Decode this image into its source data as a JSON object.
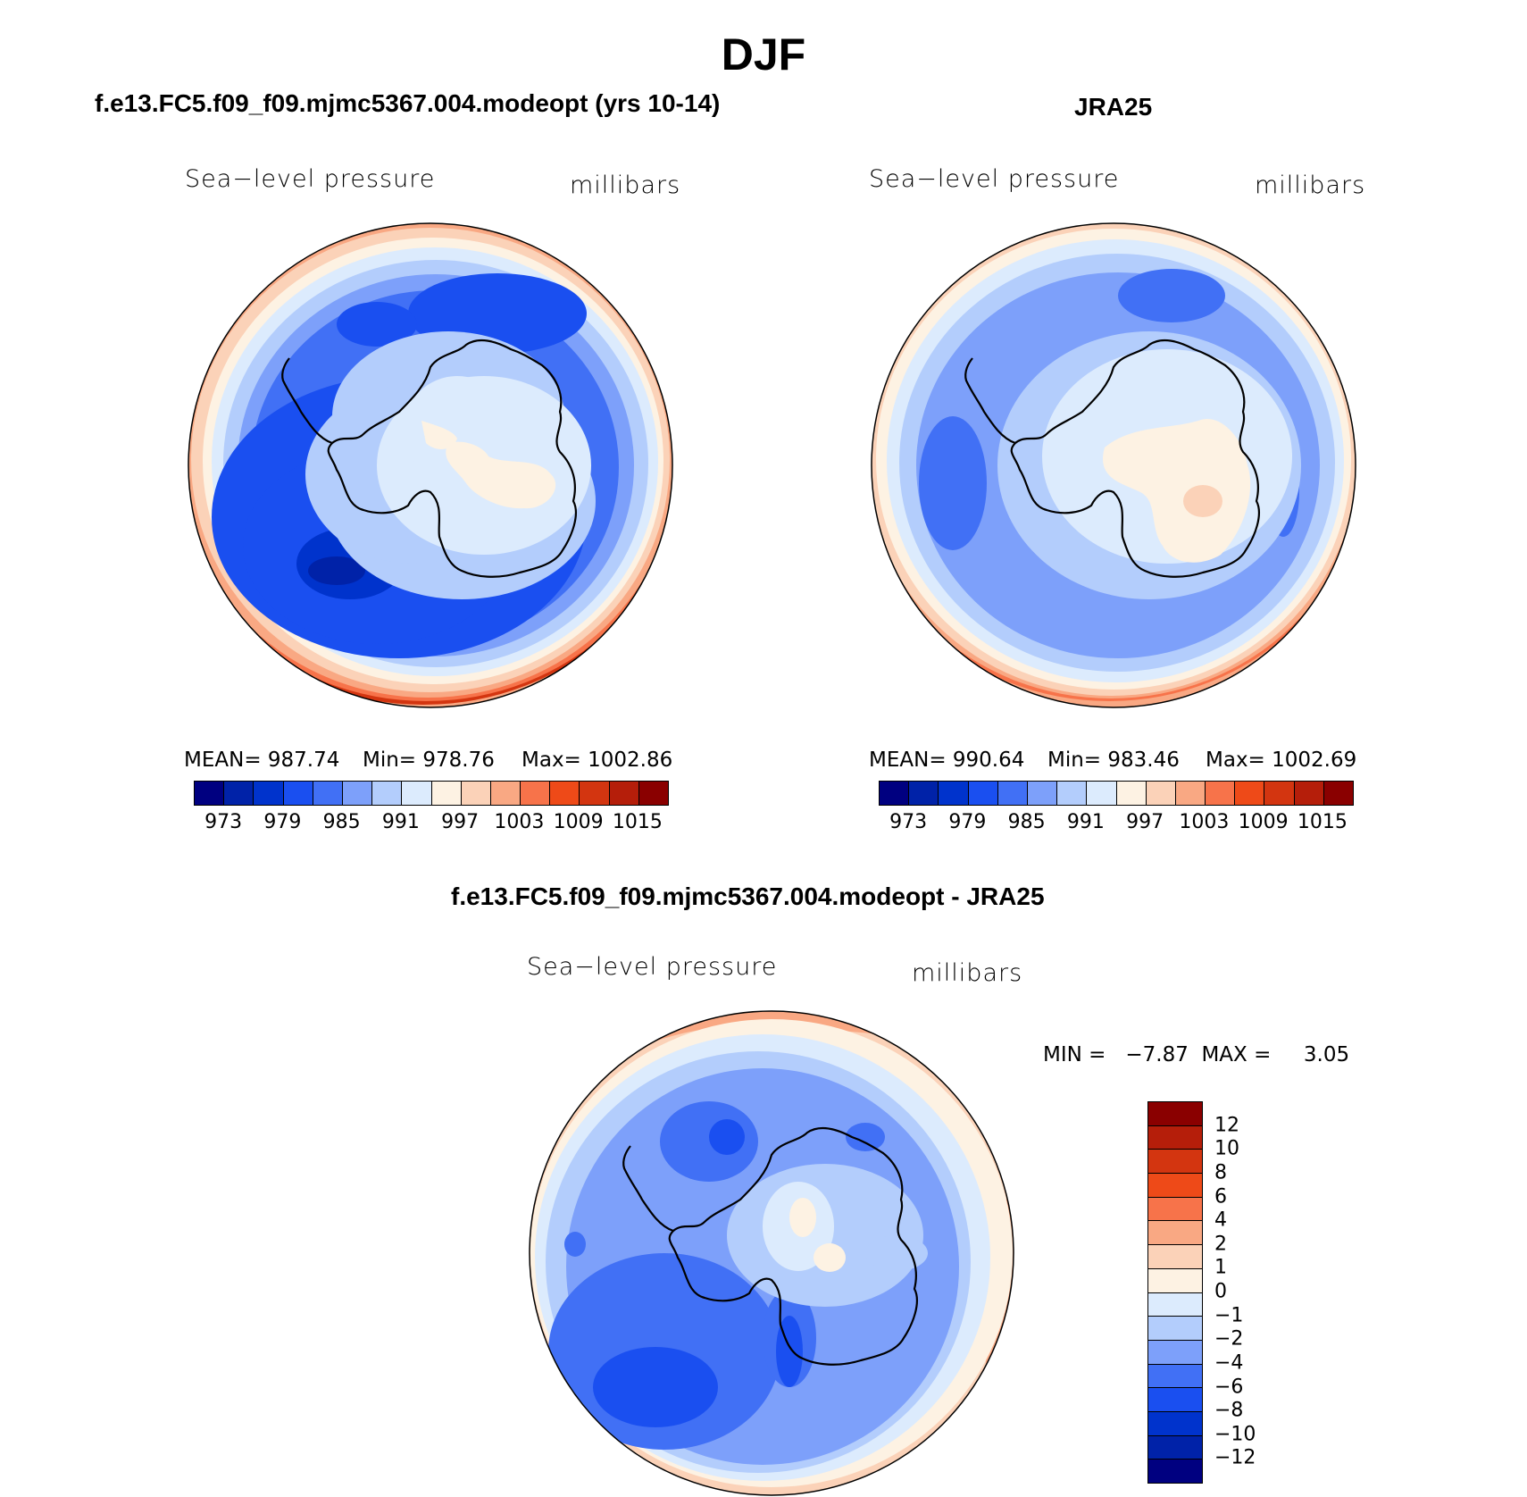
{
  "title": "DJF",
  "colors": {
    "abs": [
      "#000080",
      "#0022a8",
      "#0033cc",
      "#1a4ff0",
      "#4170f5",
      "#7da0fa",
      "#b3cdfc",
      "#dcebfd",
      "#fdf2e3",
      "#fbd2b8",
      "#f9a883",
      "#f7734a",
      "#ee4a18",
      "#d33510",
      "#b51e0a",
      "#8a0000"
    ],
    "diff": [
      "#000080",
      "#0022a8",
      "#0033cc",
      "#1a4ff0",
      "#4170f5",
      "#7da0fa",
      "#b3cdfc",
      "#dcebfd",
      "#fdf2e3",
      "#fbd2b8",
      "#f9a883",
      "#f7734a",
      "#ee4a18",
      "#d33510",
      "#b51e0a",
      "#8a0000"
    ]
  },
  "panels": {
    "model": {
      "title": "f.e13.FC5.f09_f09.mjmc5367.004.modeopt (yrs 10-14)",
      "label_left": "Sea−level pressure",
      "label_right": "millibars",
      "mean": "MEAN= 987.74",
      "min": "Min= 978.76",
      "max": "Max= 1002.86",
      "ticks": [
        "973",
        "979",
        "985",
        "991",
        "997",
        "1003",
        "1009",
        "1015"
      ]
    },
    "obs": {
      "title": "JRA25",
      "label_left": "Sea−level pressure",
      "label_right": "millibars",
      "mean": "MEAN= 990.64",
      "min": "Min= 983.46",
      "max": "Max= 1002.69",
      "ticks": [
        "973",
        "979",
        "985",
        "991",
        "997",
        "1003",
        "1009",
        "1015"
      ]
    },
    "diff": {
      "title": "f.e13.FC5.f09_f09.mjmc5367.004.modeopt - JRA25",
      "label_left": "Sea−level pressure",
      "label_right": "millibars",
      "minmax": "MIN =   −7.87  MAX =     3.05",
      "ticks": [
        "12",
        "10",
        "8",
        "6",
        "4",
        "2",
        "1",
        "0",
        "−1",
        "−2",
        "−4",
        "−6",
        "−8",
        "−10",
        "−12"
      ]
    }
  },
  "chart_data": [
    {
      "type": "contour-map",
      "projection": "south-polar-stereographic",
      "title": "f.e13.FC5.f09_f09.mjmc5367.004.modeopt (yrs 10-14)",
      "variable": "Sea-level pressure",
      "units": "millibars",
      "mean": 987.74,
      "min": 978.76,
      "max": 1002.86,
      "contour_levels": [
        973,
        976,
        979,
        982,
        985,
        988,
        991,
        994,
        997,
        1000,
        1003,
        1006,
        1009,
        1012,
        1015
      ]
    },
    {
      "type": "contour-map",
      "projection": "south-polar-stereographic",
      "title": "JRA25",
      "variable": "Sea-level pressure",
      "units": "millibars",
      "mean": 990.64,
      "min": 983.46,
      "max": 1002.69,
      "contour_levels": [
        973,
        976,
        979,
        982,
        985,
        988,
        991,
        994,
        997,
        1000,
        1003,
        1006,
        1009,
        1012,
        1015
      ]
    },
    {
      "type": "contour-map",
      "projection": "south-polar-stereographic",
      "title": "f.e13.FC5.f09_f09.mjmc5367.004.modeopt - JRA25",
      "variable": "Sea-level pressure",
      "units": "millibars",
      "min": -7.87,
      "max": 3.05,
      "contour_levels": [
        -12,
        -10,
        -8,
        -6,
        -4,
        -2,
        -1,
        0,
        1,
        2,
        4,
        6,
        8,
        10,
        12
      ]
    }
  ]
}
